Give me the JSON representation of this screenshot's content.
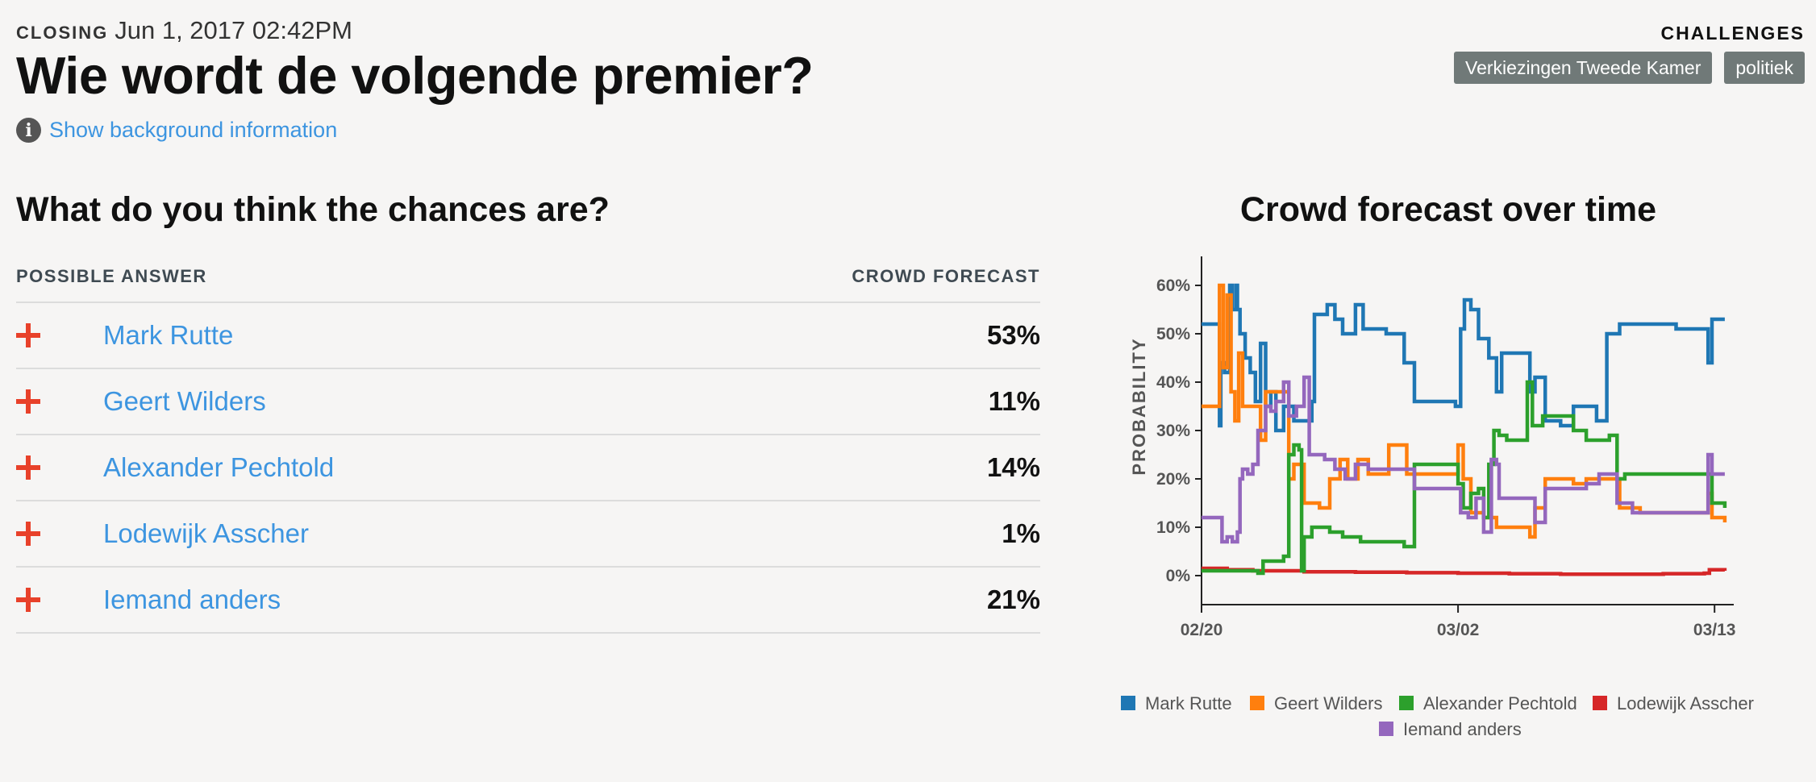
{
  "header": {
    "closing_label": "CLOSING",
    "closing_date": "Jun 1, 2017 02:42PM",
    "title": "Wie wordt de volgende premier?",
    "background_link": "Show background information"
  },
  "challenges": {
    "label": "CHALLENGES",
    "tags": [
      "Verkiezingen Tweede Kamer",
      "politiek"
    ]
  },
  "answers_section": {
    "title": "What do you think the chances are?",
    "col_answer": "POSSIBLE ANSWER",
    "col_forecast": "CROWD FORECAST",
    "rows": [
      {
        "name": "Mark Rutte",
        "forecast": "53%"
      },
      {
        "name": "Geert Wilders",
        "forecast": "11%"
      },
      {
        "name": "Alexander Pechtold",
        "forecast": "14%"
      },
      {
        "name": "Lodewijk Asscher",
        "forecast": "1%"
      },
      {
        "name": "Iemand anders",
        "forecast": "21%"
      }
    ]
  },
  "chart_section": {
    "title": "Crowd forecast over time"
  },
  "chart_data": {
    "type": "line",
    "title": "Crowd forecast over time",
    "ylabel": "PROBABILITY",
    "xlabel": "",
    "xlim": [
      0,
      21
    ],
    "ylim": [
      -6,
      66
    ],
    "xticks": [
      {
        "pos": 0,
        "label": "02/20"
      },
      {
        "pos": 10,
        "label": "03/02"
      },
      {
        "pos": 20,
        "label": "03/13"
      }
    ],
    "yticks": [
      {
        "v": 0,
        "label": "0%"
      },
      {
        "v": 10,
        "label": "10%"
      },
      {
        "v": 20,
        "label": "20%"
      },
      {
        "v": 30,
        "label": "30%"
      },
      {
        "v": 40,
        "label": "40%"
      },
      {
        "v": 50,
        "label": "50%"
      },
      {
        "v": 60,
        "label": "60%"
      }
    ],
    "series": [
      {
        "name": "Mark Rutte",
        "color": "#1f77b4",
        "points": [
          [
            0,
            52
          ],
          [
            0.6,
            52
          ],
          [
            0.7,
            31
          ],
          [
            0.75,
            44
          ],
          [
            0.9,
            42
          ],
          [
            1.1,
            60
          ],
          [
            1.2,
            55
          ],
          [
            1.35,
            60
          ],
          [
            1.4,
            55
          ],
          [
            1.5,
            50
          ],
          [
            1.7,
            45
          ],
          [
            1.9,
            42
          ],
          [
            2.1,
            36
          ],
          [
            2.3,
            48
          ],
          [
            2.5,
            35
          ],
          [
            2.7,
            38
          ],
          [
            2.9,
            30
          ],
          [
            3.2,
            35
          ],
          [
            3.6,
            32
          ],
          [
            4.3,
            36
          ],
          [
            4.4,
            54
          ],
          [
            4.9,
            56
          ],
          [
            5.2,
            53
          ],
          [
            5.5,
            50
          ],
          [
            6.0,
            56
          ],
          [
            6.3,
            51
          ],
          [
            7.2,
            50
          ],
          [
            7.9,
            44
          ],
          [
            8.3,
            36
          ],
          [
            9.9,
            35
          ],
          [
            10.1,
            51
          ],
          [
            10.25,
            57
          ],
          [
            10.5,
            55
          ],
          [
            10.8,
            49
          ],
          [
            11.2,
            45
          ],
          [
            11.5,
            38
          ],
          [
            11.7,
            46
          ],
          [
            12.8,
            38
          ],
          [
            13.0,
            41
          ],
          [
            13.4,
            32
          ],
          [
            14.0,
            31
          ],
          [
            14.5,
            35
          ],
          [
            15.4,
            32
          ],
          [
            15.8,
            50
          ],
          [
            16.3,
            52
          ],
          [
            17.0,
            52
          ],
          [
            18.5,
            51
          ],
          [
            19.6,
            51
          ],
          [
            19.75,
            44
          ],
          [
            19.9,
            53
          ],
          [
            20.4,
            53
          ]
        ]
      },
      {
        "name": "Geert Wilders",
        "color": "#ff7f0e",
        "points": [
          [
            0,
            35
          ],
          [
            0.6,
            35
          ],
          [
            0.7,
            60
          ],
          [
            0.85,
            43
          ],
          [
            1.0,
            58
          ],
          [
            1.15,
            38
          ],
          [
            1.3,
            32
          ],
          [
            1.45,
            46
          ],
          [
            1.6,
            35
          ],
          [
            2.0,
            35
          ],
          [
            2.3,
            28
          ],
          [
            2.5,
            38
          ],
          [
            3.2,
            38
          ],
          [
            3.4,
            20
          ],
          [
            3.6,
            23
          ],
          [
            4.0,
            15
          ],
          [
            4.6,
            14
          ],
          [
            5.0,
            20
          ],
          [
            5.4,
            24
          ],
          [
            5.7,
            20
          ],
          [
            6.1,
            24
          ],
          [
            6.5,
            21
          ],
          [
            7.1,
            21
          ],
          [
            7.3,
            27
          ],
          [
            8.0,
            21
          ],
          [
            9.8,
            21
          ],
          [
            10.0,
            27
          ],
          [
            10.2,
            20
          ],
          [
            10.5,
            13
          ],
          [
            11.0,
            12
          ],
          [
            11.5,
            10
          ],
          [
            12.2,
            10
          ],
          [
            12.8,
            8
          ],
          [
            13.0,
            14
          ],
          [
            13.4,
            20
          ],
          [
            14.5,
            19
          ],
          [
            15.0,
            20
          ],
          [
            15.4,
            20
          ],
          [
            16.3,
            14
          ],
          [
            17.1,
            13
          ],
          [
            18.5,
            13
          ],
          [
            19.6,
            13
          ],
          [
            19.75,
            17
          ],
          [
            19.9,
            12
          ],
          [
            20.4,
            11
          ]
        ]
      },
      {
        "name": "Alexander Pechtold",
        "color": "#2ca02c",
        "points": [
          [
            0,
            1
          ],
          [
            1.5,
            1
          ],
          [
            2.2,
            0.5
          ],
          [
            2.4,
            3
          ],
          [
            3.0,
            3
          ],
          [
            3.2,
            4
          ],
          [
            3.4,
            25
          ],
          [
            3.6,
            27
          ],
          [
            3.8,
            26
          ],
          [
            3.9,
            1
          ],
          [
            4.0,
            8
          ],
          [
            4.3,
            10
          ],
          [
            5.0,
            9
          ],
          [
            5.5,
            8
          ],
          [
            6.2,
            7
          ],
          [
            7.2,
            7
          ],
          [
            7.9,
            6
          ],
          [
            8.3,
            23
          ],
          [
            8.7,
            23
          ],
          [
            9.9,
            23
          ],
          [
            10.0,
            19
          ],
          [
            10.2,
            14
          ],
          [
            10.5,
            17
          ],
          [
            10.8,
            18
          ],
          [
            11.0,
            12
          ],
          [
            11.2,
            23
          ],
          [
            11.4,
            30
          ],
          [
            11.6,
            29
          ],
          [
            11.9,
            28
          ],
          [
            12.5,
            28
          ],
          [
            12.7,
            40
          ],
          [
            12.9,
            31
          ],
          [
            13.3,
            33
          ],
          [
            13.8,
            33
          ],
          [
            14.5,
            30
          ],
          [
            15.0,
            28
          ],
          [
            15.4,
            28
          ],
          [
            15.9,
            29
          ],
          [
            16.2,
            20
          ],
          [
            16.5,
            21
          ],
          [
            17.0,
            21
          ],
          [
            18.5,
            21
          ],
          [
            19.6,
            21
          ],
          [
            19.9,
            15
          ],
          [
            20.4,
            14
          ]
        ]
      },
      {
        "name": "Lodewijk Asscher",
        "color": "#d62728",
        "points": [
          [
            0,
            1.5
          ],
          [
            1.0,
            1.2
          ],
          [
            2.0,
            1.0
          ],
          [
            4.0,
            0.8
          ],
          [
            6.0,
            0.7
          ],
          [
            8.0,
            0.6
          ],
          [
            10.0,
            0.5
          ],
          [
            12.0,
            0.4
          ],
          [
            14.0,
            0.3
          ],
          [
            16.0,
            0.3
          ],
          [
            18.0,
            0.4
          ],
          [
            19.6,
            0.5
          ],
          [
            19.8,
            1.2
          ],
          [
            20.4,
            1.0
          ]
        ]
      },
      {
        "name": "Iemand anders",
        "color": "#9467bd",
        "points": [
          [
            0,
            12
          ],
          [
            0.7,
            12
          ],
          [
            0.8,
            7
          ],
          [
            1.0,
            8
          ],
          [
            1.2,
            7
          ],
          [
            1.4,
            9
          ],
          [
            1.5,
            20
          ],
          [
            1.6,
            22
          ],
          [
            1.8,
            21
          ],
          [
            2.0,
            23
          ],
          [
            2.2,
            30
          ],
          [
            2.5,
            35
          ],
          [
            2.7,
            34
          ],
          [
            2.9,
            36
          ],
          [
            3.2,
            40
          ],
          [
            3.4,
            33
          ],
          [
            3.7,
            35
          ],
          [
            4.0,
            41
          ],
          [
            4.2,
            25
          ],
          [
            4.8,
            24
          ],
          [
            5.2,
            22
          ],
          [
            5.6,
            20
          ],
          [
            6.0,
            23
          ],
          [
            6.5,
            22
          ],
          [
            7.2,
            22
          ],
          [
            8.0,
            22
          ],
          [
            8.3,
            18
          ],
          [
            9.5,
            18
          ],
          [
            9.9,
            18
          ],
          [
            10.1,
            13
          ],
          [
            10.4,
            12
          ],
          [
            10.7,
            16
          ],
          [
            11.0,
            9
          ],
          [
            11.3,
            24
          ],
          [
            11.5,
            23
          ],
          [
            11.6,
            16
          ],
          [
            12.8,
            16
          ],
          [
            13.0,
            11
          ],
          [
            13.4,
            18
          ],
          [
            14.5,
            18
          ],
          [
            15.0,
            19
          ],
          [
            15.5,
            21
          ],
          [
            16.2,
            15
          ],
          [
            16.8,
            13
          ],
          [
            18.5,
            13
          ],
          [
            19.6,
            13
          ],
          [
            19.75,
            25
          ],
          [
            19.9,
            21
          ],
          [
            20.4,
            21
          ]
        ]
      }
    ],
    "legend": [
      "Mark Rutte",
      "Geert Wilders",
      "Alexander Pechtold",
      "Lodewijk Asscher",
      "Iemand anders"
    ]
  }
}
